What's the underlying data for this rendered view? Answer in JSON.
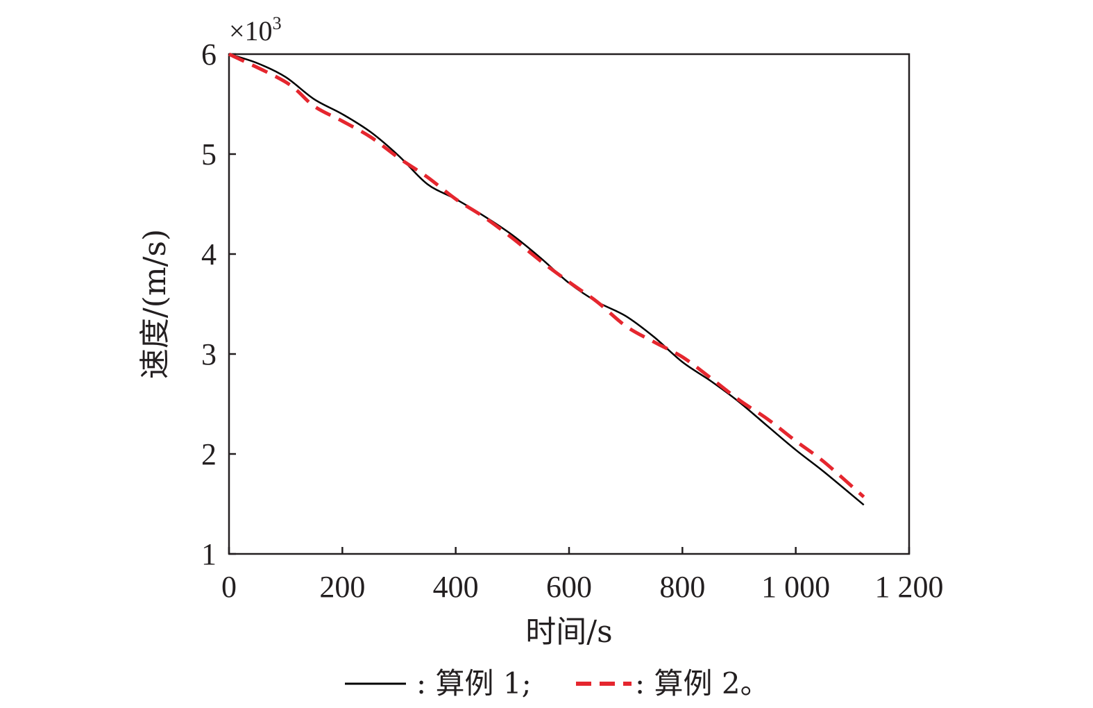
{
  "chart_data": {
    "type": "line",
    "title": "",
    "xlabel": "时间/s",
    "ylabel": "速度/(m/s)",
    "y_multiplier": {
      "base": "×10",
      "exponent": "3"
    },
    "xlim": [
      0,
      1200
    ],
    "ylim": [
      1,
      6
    ],
    "x_ticks": [
      0,
      200,
      400,
      600,
      800,
      1000,
      1200
    ],
    "x_tick_labels": [
      "0",
      "200",
      "400",
      "600",
      "800",
      "1 000",
      "1 200"
    ],
    "y_ticks": [
      1,
      2,
      3,
      4,
      5,
      6
    ],
    "y_tick_labels": [
      "1",
      "2",
      "3",
      "4",
      "5",
      "6"
    ],
    "grid": false,
    "legend_position": "bottom",
    "series": [
      {
        "name": "算例 1",
        "legend_label": ": 算例 1;",
        "color": "#000000",
        "dash": "solid",
        "x": [
          0,
          50,
          100,
          150,
          200,
          250,
          300,
          350,
          400,
          450,
          500,
          550,
          600,
          650,
          700,
          750,
          800,
          850,
          900,
          950,
          1000,
          1050,
          1120
        ],
        "y": [
          6.0,
          5.91,
          5.77,
          5.55,
          5.4,
          5.22,
          4.98,
          4.7,
          4.55,
          4.38,
          4.19,
          3.96,
          3.71,
          3.52,
          3.38,
          3.17,
          2.92,
          2.73,
          2.52,
          2.28,
          2.04,
          1.82,
          1.49
        ]
      },
      {
        "name": "算例 2",
        "legend_label": ": 算例 2。",
        "color": "#e5262e",
        "dash": "dashed",
        "x": [
          0,
          100,
          150,
          200,
          250,
          300,
          350,
          400,
          450,
          500,
          550,
          600,
          650,
          700,
          750,
          800,
          850,
          900,
          950,
          1000,
          1050,
          1120
        ],
        "y": [
          6.0,
          5.72,
          5.48,
          5.33,
          5.17,
          4.96,
          4.77,
          4.55,
          4.37,
          4.16,
          3.93,
          3.72,
          3.52,
          3.28,
          3.12,
          2.97,
          2.76,
          2.54,
          2.35,
          2.13,
          1.92,
          1.57
        ]
      }
    ]
  }
}
